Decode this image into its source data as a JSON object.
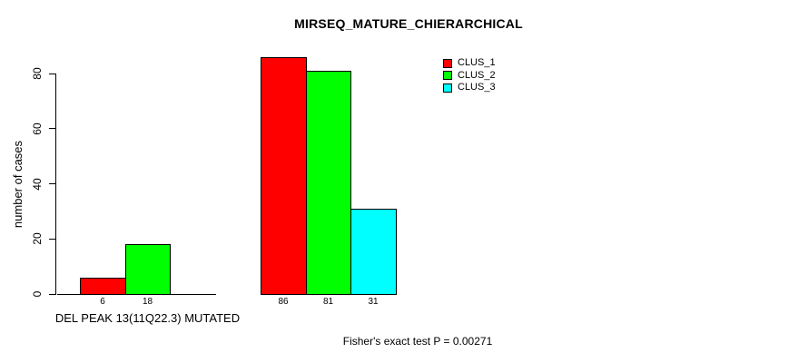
{
  "chart_data": {
    "type": "bar",
    "title": "MIRSEQ_MATURE_CHIERARCHICAL",
    "ylabel": "number of cases",
    "xlabel": "DEL PEAK 13(11Q22.3) MUTATED",
    "annotation": "Fisher's exact test P = 0.00271",
    "yticks": [
      0,
      20,
      40,
      60,
      80
    ],
    "ylim": [
      0,
      86
    ],
    "grid": false,
    "legend_position": "top-right",
    "background_color": "#ffffff",
    "axis_color": "#000000",
    "series": [
      {
        "name": "CLUS_1",
        "color": "#ff0000",
        "values": [
          6,
          86
        ]
      },
      {
        "name": "CLUS_2",
        "color": "#00ff00",
        "values": [
          18,
          81
        ]
      },
      {
        "name": "CLUS_3",
        "color": "#00ffff",
        "values": [
          null,
          31
        ]
      }
    ],
    "group_count": 2
  }
}
